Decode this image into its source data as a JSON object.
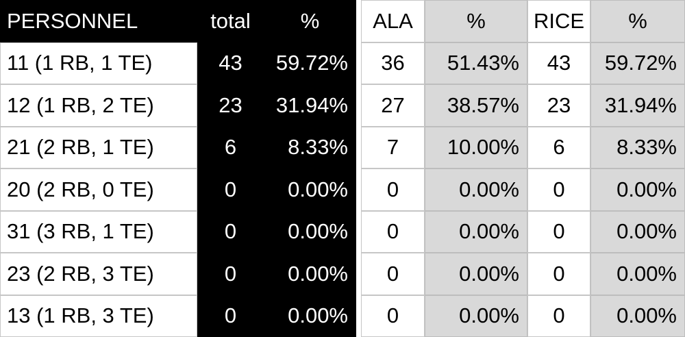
{
  "header": [
    "PERSONNEL",
    "total",
    "%",
    "ALA",
    "%",
    "RICE",
    "%"
  ],
  "rows": [
    [
      "11 (1 RB, 1 TE)",
      "43",
      "59.72%",
      "36",
      "51.43%",
      "43",
      "59.72%"
    ],
    [
      "12 (1 RB, 2 TE)",
      "23",
      "31.94%",
      "27",
      "38.57%",
      "23",
      "31.94%"
    ],
    [
      "21 (2 RB, 1 TE)",
      "6",
      "8.33%",
      "7",
      "10.00%",
      "6",
      "8.33%"
    ],
    [
      "20 (2 RB, 0 TE)",
      "0",
      "0.00%",
      "0",
      "0.00%",
      "0",
      "0.00%"
    ],
    [
      "31 (3 RB, 1 TE)",
      "0",
      "0.00%",
      "0",
      "0.00%",
      "0",
      "0.00%"
    ],
    [
      "23 (2 RB, 3 TE)",
      "0",
      "0.00%",
      "0",
      "0.00%",
      "0",
      "0.00%"
    ],
    [
      "13 (1 RB, 3 TE)",
      "0",
      "0.00%",
      "0",
      "0.00%",
      "0",
      "0.00%"
    ]
  ]
}
